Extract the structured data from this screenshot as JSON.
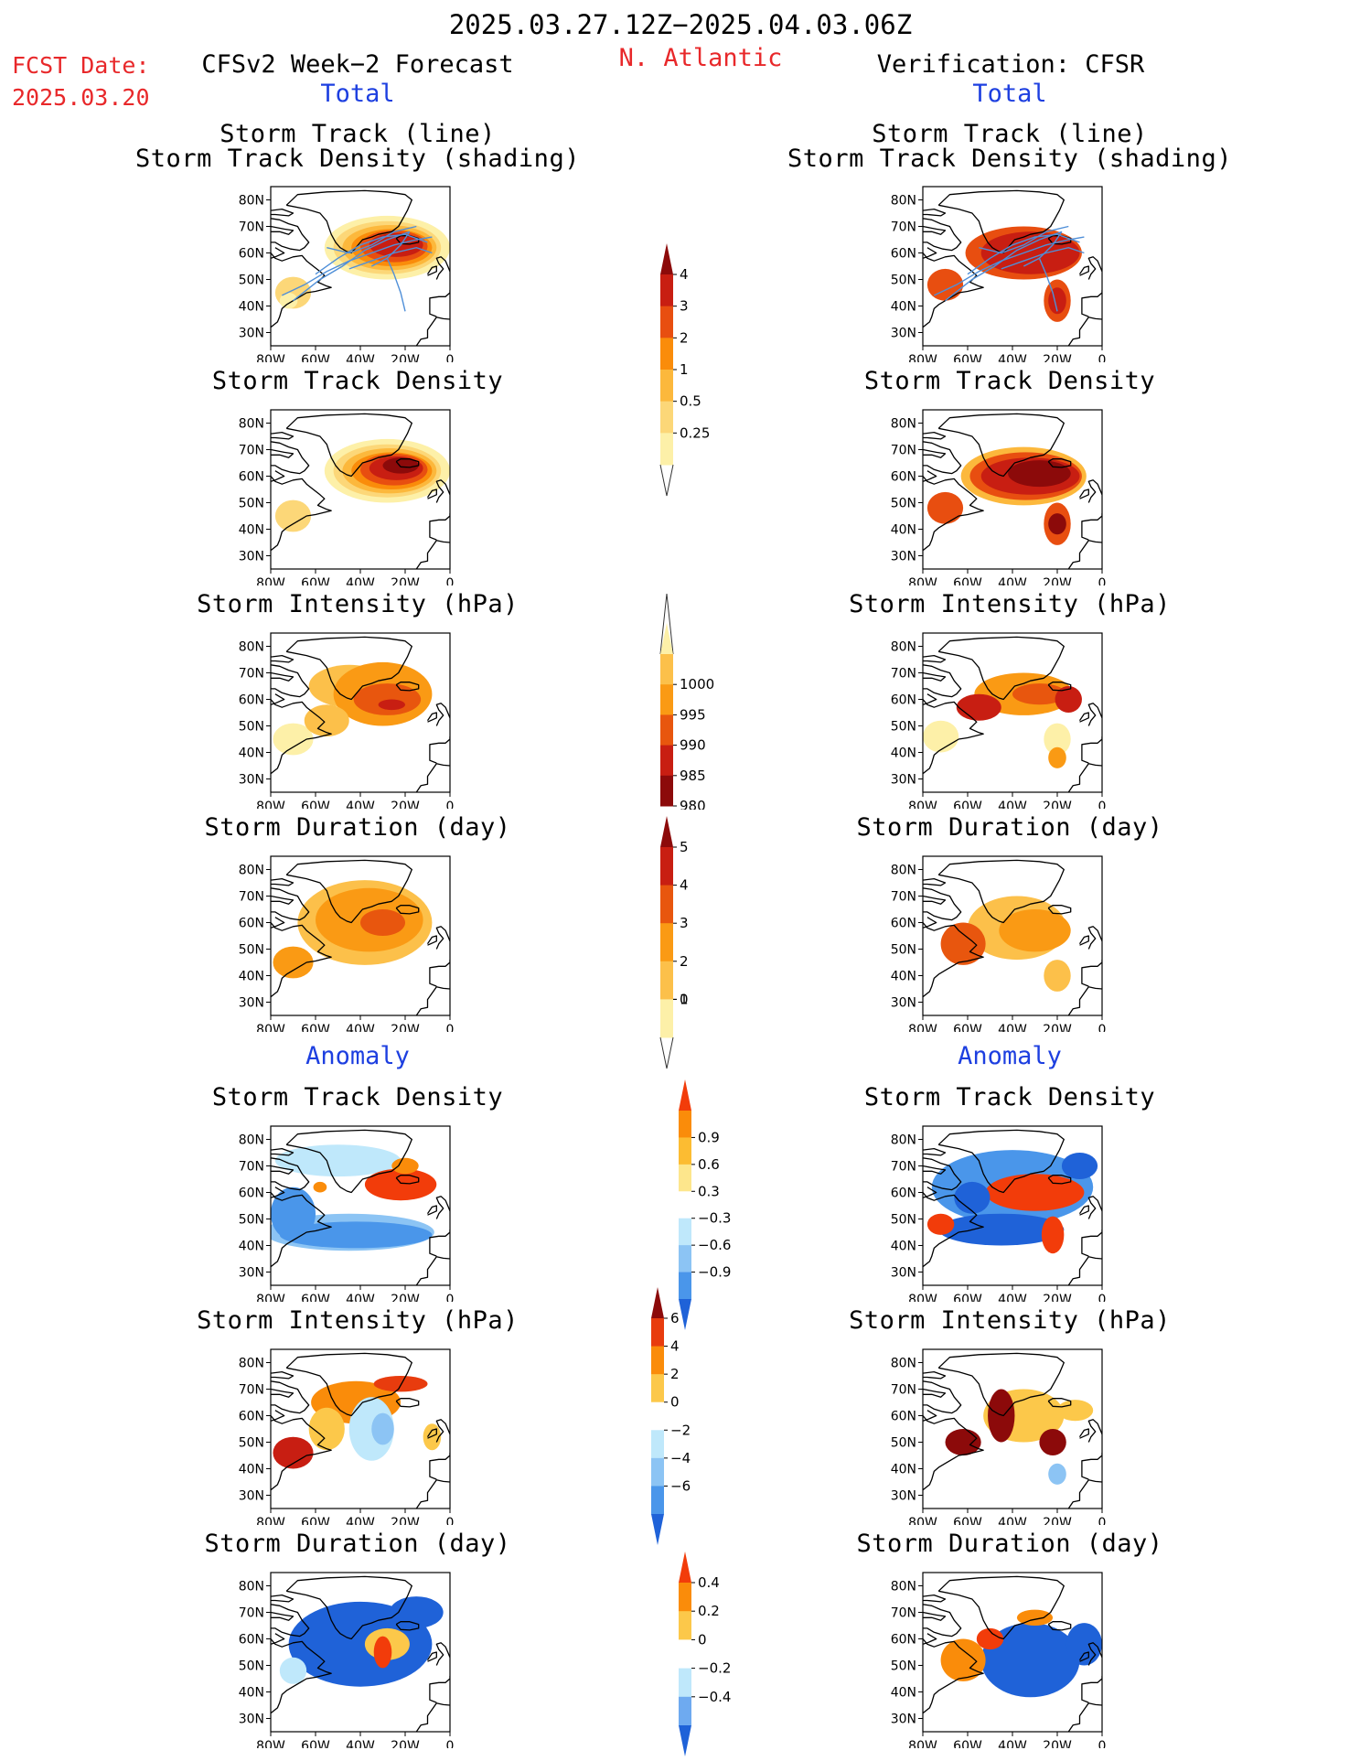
{
  "header": {
    "date_range": "2025.03.27.12Z−2025.04.03.06Z",
    "fcst_label": "FCST Date:",
    "fcst_date": "2025.03.20",
    "left_title": "CFSv2 Week−2 Forecast",
    "region": "N. Atlantic",
    "right_title": "Verification: CFSR",
    "total_label": "Total",
    "anomaly_label": "Anomaly"
  },
  "panel_titles": {
    "track_line": "Storm Track (line)",
    "track_shading": "Storm Track Density (shading)",
    "density": "Storm Track Density",
    "intensity": "Storm Intensity (hPa)",
    "duration": "Storm Duration (day)"
  },
  "axes": {
    "lat_labels": [
      "80N",
      "70N",
      "60N",
      "50N",
      "40N",
      "30N"
    ],
    "lon_labels": [
      "80W",
      "60W",
      "40W",
      "20W",
      "0"
    ]
  },
  "colorbars": [
    {
      "id": "density",
      "labels": [
        "4",
        "3",
        "2",
        "1",
        "0.5",
        "0.25"
      ],
      "colors": [
        "#8c0a0a",
        "#c81e12",
        "#e84e10",
        "#fa8c0a",
        "#fcb83c",
        "#fcd778",
        "#fdf0a8"
      ],
      "tail": "bottom"
    },
    {
      "id": "intensity",
      "labels": [
        "1000",
        "995",
        "990",
        "985",
        "980"
      ],
      "colors": [
        "#fdf0a8",
        "#fcc04a",
        "#fa9a14",
        "#e8560e",
        "#c81e12",
        "#8c0a0a"
      ],
      "tail": "top"
    },
    {
      "id": "duration",
      "labels": [
        "5",
        "4",
        "3",
        "2",
        "1",
        "0"
      ],
      "colors": [
        "#8c0a0a",
        "#c81e12",
        "#e8560e",
        "#fa9a14",
        "#fcc04a",
        "#fdf0a8"
      ],
      "tail": "bottom"
    },
    {
      "id": "anom_density",
      "labels": [
        "0.9",
        "0.6",
        "0.3",
        "−0.3",
        "−0.6",
        "−0.9"
      ],
      "colors": [
        "#f23c0a",
        "#fa8c0a",
        "#fcbc32",
        "#fde68c",
        "#ffffff",
        "#bfe8fb",
        "#8cc4f4",
        "#4a96ea",
        "#1f62d8"
      ],
      "tail": "none"
    },
    {
      "id": "anom_intensity",
      "labels": [
        "6",
        "4",
        "2",
        "0",
        "−2",
        "−4",
        "−6"
      ],
      "colors": [
        "#8c0a0a",
        "#e83c0e",
        "#fa8c0a",
        "#fcc84a",
        "#ffffff",
        "#bfe8fb",
        "#8cc4f4",
        "#4a96ea",
        "#1f62d8"
      ],
      "tail": "none"
    },
    {
      "id": "anom_duration",
      "labels": [
        "0.4",
        "0.2",
        "0",
        "−0.2",
        "−0.4"
      ],
      "colors": [
        "#f23c0a",
        "#fa8c0a",
        "#fcc84a",
        "#ffffff",
        "#bfe8fb",
        "#6eaaf0",
        "#1f62d8"
      ],
      "tail": "none"
    }
  ],
  "maps": {
    "fc_track": {
      "blobs": [
        [
          -28,
          62,
          28,
          12,
          "#fdf0a8"
        ],
        [
          -28,
          62,
          24,
          10,
          "#fcd778"
        ],
        [
          -27,
          62,
          21,
          8.5,
          "#fcb83c"
        ],
        [
          -26,
          62,
          18,
          7,
          "#fa8c0a"
        ],
        [
          -25,
          62.5,
          15,
          6,
          "#e84e10"
        ],
        [
          -24,
          63,
          12,
          4.5,
          "#c81e12"
        ],
        [
          -70,
          45,
          8,
          6,
          "#fcd778"
        ],
        [
          -72,
          42,
          4,
          3,
          "#fdf0a8"
        ]
      ],
      "tracks": true
    },
    "fc_density": {
      "blobs": [
        [
          -28,
          62,
          28,
          12,
          "#fdf0a8"
        ],
        [
          -28,
          62,
          24,
          10,
          "#fcd778"
        ],
        [
          -27,
          62,
          21,
          8.5,
          "#fcb83c"
        ],
        [
          -26,
          62,
          18,
          7,
          "#fa8c0a"
        ],
        [
          -25,
          62.5,
          15,
          6,
          "#e84e10"
        ],
        [
          -24,
          63,
          12,
          4.5,
          "#c81e12"
        ],
        [
          -22,
          64,
          8,
          3,
          "#8c0a0a"
        ],
        [
          -70,
          45,
          8,
          6,
          "#fcd778"
        ]
      ]
    },
    "fc_intensity": {
      "blobs": [
        [
          -45,
          65,
          18,
          8,
          "#fcc04a"
        ],
        [
          -30,
          62,
          22,
          12,
          "#fa9a14"
        ],
        [
          -28,
          60,
          15,
          6,
          "#e8560e"
        ],
        [
          -26,
          58,
          6,
          2,
          "#c81e12"
        ],
        [
          -70,
          45,
          9,
          6,
          "#fdf0a8"
        ],
        [
          -55,
          52,
          10,
          6,
          "#fcc04a"
        ]
      ]
    },
    "fc_duration": {
      "blobs": [
        [
          -38,
          60,
          30,
          16,
          "#fcc04a"
        ],
        [
          -36,
          61,
          24,
          12,
          "#fa9a14"
        ],
        [
          -30,
          60,
          10,
          5,
          "#e8560e"
        ],
        [
          -70,
          45,
          9,
          6,
          "#fa9a14"
        ]
      ]
    },
    "fc_anom_density": {
      "blobs": [
        [
          -50,
          72,
          28,
          6,
          "#bfe8fb"
        ],
        [
          -22,
          63,
          16,
          6,
          "#f23c0a"
        ],
        [
          -20,
          70,
          6,
          3,
          "#fa8c0a"
        ],
        [
          -45,
          45,
          38,
          7,
          "#8cc4f4"
        ],
        [
          -42,
          44,
          34,
          5,
          "#4a96ea"
        ],
        [
          -70,
          52,
          10,
          10,
          "#4a96ea"
        ],
        [
          -58,
          62,
          3,
          2,
          "#fa8c0a"
        ]
      ]
    },
    "fc_anom_intensity": {
      "blobs": [
        [
          -42,
          65,
          20,
          8,
          "#fa8c0a"
        ],
        [
          -22,
          72,
          12,
          3,
          "#e83c0e"
        ],
        [
          -35,
          55,
          10,
          12,
          "#bfe8fb"
        ],
        [
          -30,
          55,
          5,
          6,
          "#8cc4f4"
        ],
        [
          -70,
          46,
          9,
          6,
          "#c81e12"
        ],
        [
          -8,
          52,
          4,
          5,
          "#fcc84a"
        ],
        [
          -55,
          55,
          8,
          8,
          "#fcc84a"
        ]
      ]
    },
    "fc_anom_duration": {
      "blobs": [
        [
          -40,
          58,
          32,
          16,
          "#1f62d8"
        ],
        [
          -28,
          58,
          10,
          6,
          "#fcc84a"
        ],
        [
          -30,
          55,
          4,
          6,
          "#f23c0a"
        ],
        [
          -70,
          48,
          6,
          5,
          "#bfe8fb"
        ],
        [
          -15,
          70,
          12,
          6,
          "#1f62d8"
        ]
      ]
    },
    "ob_track": {
      "blobs": [
        [
          -35,
          60,
          26,
          10,
          "#e84e10"
        ],
        [
          -32,
          60,
          22,
          8,
          "#c81e12"
        ],
        [
          -20,
          42,
          6,
          8,
          "#e84e10"
        ],
        [
          -20,
          42,
          4,
          5,
          "#c81e12"
        ],
        [
          -70,
          48,
          8,
          6,
          "#e84e10"
        ]
      ],
      "tracks": true
    },
    "ob_density": {
      "blobs": [
        [
          -35,
          60,
          28,
          11,
          "#fcb83c"
        ],
        [
          -34,
          60,
          25,
          9,
          "#e84e10"
        ],
        [
          -32,
          60,
          22,
          7,
          "#c81e12"
        ],
        [
          -28,
          61,
          14,
          5,
          "#8c0a0a"
        ],
        [
          -20,
          42,
          6,
          8,
          "#e84e10"
        ],
        [
          -20,
          42,
          4,
          4,
          "#8c0a0a"
        ],
        [
          -70,
          48,
          8,
          6,
          "#e84e10"
        ]
      ]
    },
    "ob_intensity": {
      "blobs": [
        [
          -35,
          62,
          22,
          8,
          "#fa9a14"
        ],
        [
          -28,
          62,
          12,
          4,
          "#e8560e"
        ],
        [
          -20,
          45,
          6,
          6,
          "#fdf0a8"
        ],
        [
          -55,
          57,
          10,
          5,
          "#c81e12"
        ],
        [
          -72,
          46,
          8,
          6,
          "#fdf0a8"
        ],
        [
          -15,
          60,
          6,
          5,
          "#c81e12"
        ],
        [
          -20,
          38,
          4,
          4,
          "#fa9a14"
        ]
      ]
    },
    "ob_duration": {
      "blobs": [
        [
          -38,
          58,
          22,
          12,
          "#fcc04a"
        ],
        [
          -30,
          57,
          16,
          8,
          "#fa9a14"
        ],
        [
          -62,
          52,
          10,
          8,
          "#e8560e"
        ],
        [
          -20,
          40,
          6,
          6,
          "#fcc04a"
        ]
      ]
    },
    "ob_anom_density": {
      "blobs": [
        [
          -40,
          62,
          36,
          14,
          "#4a96ea"
        ],
        [
          -30,
          60,
          22,
          7,
          "#f23c0a"
        ],
        [
          -45,
          46,
          28,
          6,
          "#1f62d8"
        ],
        [
          -22,
          44,
          5,
          7,
          "#f23c0a"
        ],
        [
          -72,
          48,
          6,
          4,
          "#f23c0a"
        ],
        [
          -10,
          70,
          8,
          5,
          "#1f62d8"
        ],
        [
          -58,
          58,
          8,
          6,
          "#1f62d8"
        ]
      ]
    },
    "ob_anom_intensity": {
      "blobs": [
        [
          -35,
          60,
          18,
          10,
          "#fcc84a"
        ],
        [
          -45,
          60,
          6,
          10,
          "#8c0a0a"
        ],
        [
          -22,
          50,
          6,
          5,
          "#8c0a0a"
        ],
        [
          -62,
          50,
          8,
          5,
          "#8c0a0a"
        ],
        [
          -20,
          38,
          4,
          4,
          "#8cc4f4"
        ],
        [
          -12,
          62,
          8,
          4,
          "#fcc84a"
        ]
      ]
    },
    "ob_anom_duration": {
      "blobs": [
        [
          -32,
          52,
          22,
          14,
          "#1f62d8"
        ],
        [
          -8,
          58,
          8,
          8,
          "#1f62d8"
        ],
        [
          -62,
          52,
          10,
          8,
          "#fa8c0a"
        ],
        [
          -50,
          60,
          6,
          4,
          "#f23c0a"
        ],
        [
          -30,
          68,
          8,
          3,
          "#fa8c0a"
        ]
      ]
    }
  }
}
